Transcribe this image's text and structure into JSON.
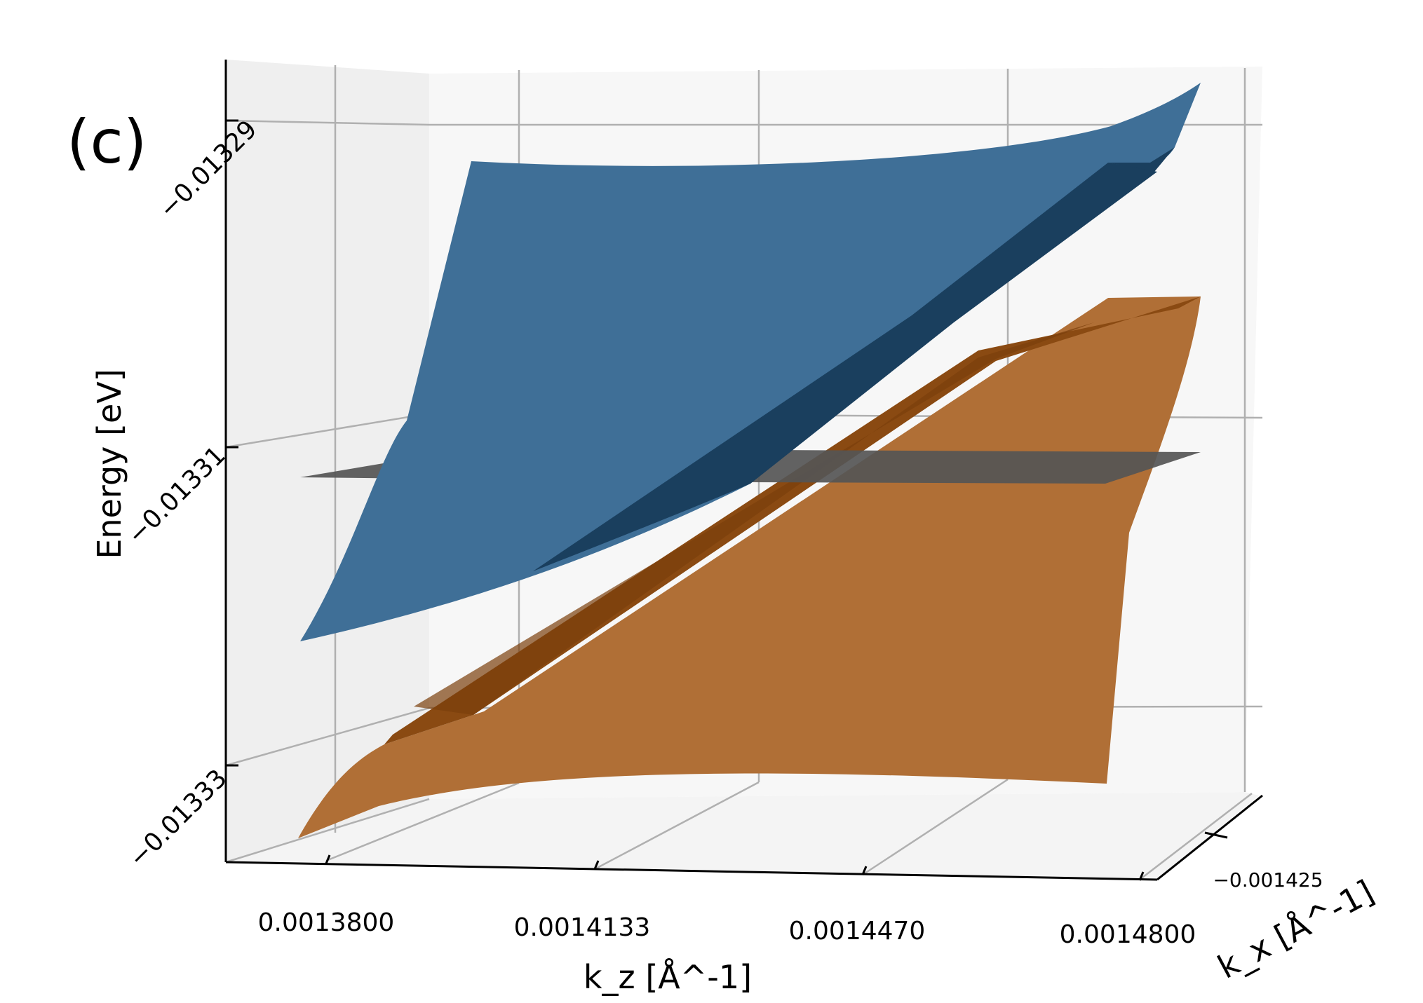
{
  "panel_label": "(c)",
  "chart_data": {
    "type": "surface3d",
    "zlabel": "Energy [eV]",
    "xlabel_kz": "k_z [Å^-1]",
    "xlabel_kx": "k_x [Å^-1]",
    "kz_ticks": [
      "0.0013800",
      "0.0014133",
      "0.0014470",
      "0.0014800"
    ],
    "kx_ticks": [
      "−0.001425"
    ],
    "energy_ticks": [
      "−0.01329",
      "−0.01331",
      "−0.01333"
    ],
    "kz_range": [
      0.00138,
      0.00148
    ],
    "energy_range": [
      -0.013335,
      -0.013288
    ],
    "surfaces": [
      {
        "color": "#3f6f97",
        "dark_color": "#1a3f5e",
        "role": "upper-band"
      },
      {
        "color": "#b06f36",
        "dark_color": "#8a4a12",
        "role": "lower-band"
      },
      {
        "color": "#555555",
        "role": "fermi-plane"
      }
    ],
    "grid": true,
    "pane_color": "#f2f2f2"
  }
}
